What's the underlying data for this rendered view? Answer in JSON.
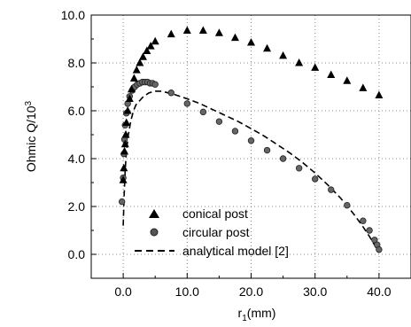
{
  "chart_data": {
    "type": "scatter",
    "title": "",
    "xlabel_main": "r",
    "xlabel_sub": "1",
    "xlabel_rest": "(mm)",
    "ylabel_main": "Ohmic Q/10",
    "ylabel_sup": "3",
    "xlim": [
      -5,
      45
    ],
    "ylim": [
      -1,
      10
    ],
    "x_ticks": [
      0,
      10,
      20,
      30,
      40
    ],
    "x_tick_labels": [
      "0.0",
      "10.0",
      "20.0",
      "30.0",
      "40.0"
    ],
    "y_ticks": [
      0,
      2,
      4,
      6,
      8,
      10
    ],
    "y_tick_labels": [
      "0.0",
      "2.0",
      "4.0",
      "6.0",
      "8.0",
      "10.0"
    ],
    "grid": "dotted",
    "legend_position": "bottom-left",
    "series": [
      {
        "name": "conical post",
        "marker": "triangle",
        "x": [
          0.0,
          0.1,
          0.2,
          0.3,
          0.4,
          0.5,
          0.7,
          1.0,
          1.3,
          1.7,
          2.1,
          2.6,
          3.1,
          3.7,
          4.3,
          5.0,
          7.5,
          10.0,
          12.5,
          15.0,
          17.5,
          20.0,
          22.5,
          25.0,
          27.5,
          30.0,
          32.5,
          35.0,
          37.5,
          40.0
        ],
        "y": [
          3.1,
          3.6,
          4.3,
          4.6,
          5.0,
          5.5,
          6.0,
          6.5,
          6.9,
          7.35,
          7.7,
          8.0,
          8.25,
          8.5,
          8.7,
          8.9,
          9.2,
          9.35,
          9.35,
          9.25,
          9.05,
          8.85,
          8.6,
          8.3,
          8.0,
          7.8,
          7.5,
          7.25,
          6.95,
          6.65
        ]
      },
      {
        "name": "circular post",
        "marker": "circle",
        "x": [
          -0.2,
          0.0,
          0.1,
          0.2,
          0.3,
          0.5,
          0.7,
          1.0,
          1.4,
          1.8,
          2.2,
          2.6,
          3.0,
          3.4,
          3.8,
          4.2,
          4.6,
          5.0,
          7.5,
          10.0,
          12.5,
          15.0,
          17.5,
          20.0,
          22.5,
          25.0,
          27.5,
          30.0,
          32.5,
          35.0,
          37.5,
          38.5,
          39.3,
          39.7,
          40.0
        ],
        "y": [
          2.2,
          3.2,
          4.2,
          4.8,
          5.4,
          5.9,
          6.3,
          6.6,
          6.85,
          7.0,
          7.1,
          7.15,
          7.2,
          7.2,
          7.2,
          7.15,
          7.15,
          7.1,
          6.75,
          6.3,
          5.95,
          5.55,
          5.15,
          4.75,
          4.35,
          4.0,
          3.6,
          3.15,
          2.7,
          2.05,
          1.4,
          1.0,
          0.6,
          0.4,
          0.2
        ]
      },
      {
        "name": "analytical model [2]",
        "marker": "line-dashed",
        "x": [
          0.0,
          0.15,
          0.3,
          0.5,
          0.8,
          1.2,
          1.6,
          2.0,
          3.0,
          4.0,
          5.0,
          6.0,
          8.0,
          10.0,
          12.0,
          14.0,
          16.0,
          18.0,
          20.0,
          22.0,
          24.0,
          26.0,
          28.0,
          30.0,
          32.0,
          34.0,
          36.0,
          37.5,
          38.5,
          39.5,
          40.0
        ],
        "y": [
          1.2,
          2.5,
          3.5,
          4.3,
          5.0,
          5.6,
          6.0,
          6.25,
          6.55,
          6.75,
          6.82,
          6.82,
          6.68,
          6.5,
          6.3,
          6.05,
          5.8,
          5.55,
          5.25,
          4.95,
          4.6,
          4.25,
          3.85,
          3.4,
          2.9,
          2.35,
          1.7,
          1.15,
          0.75,
          0.3,
          0.1
        ]
      }
    ]
  }
}
